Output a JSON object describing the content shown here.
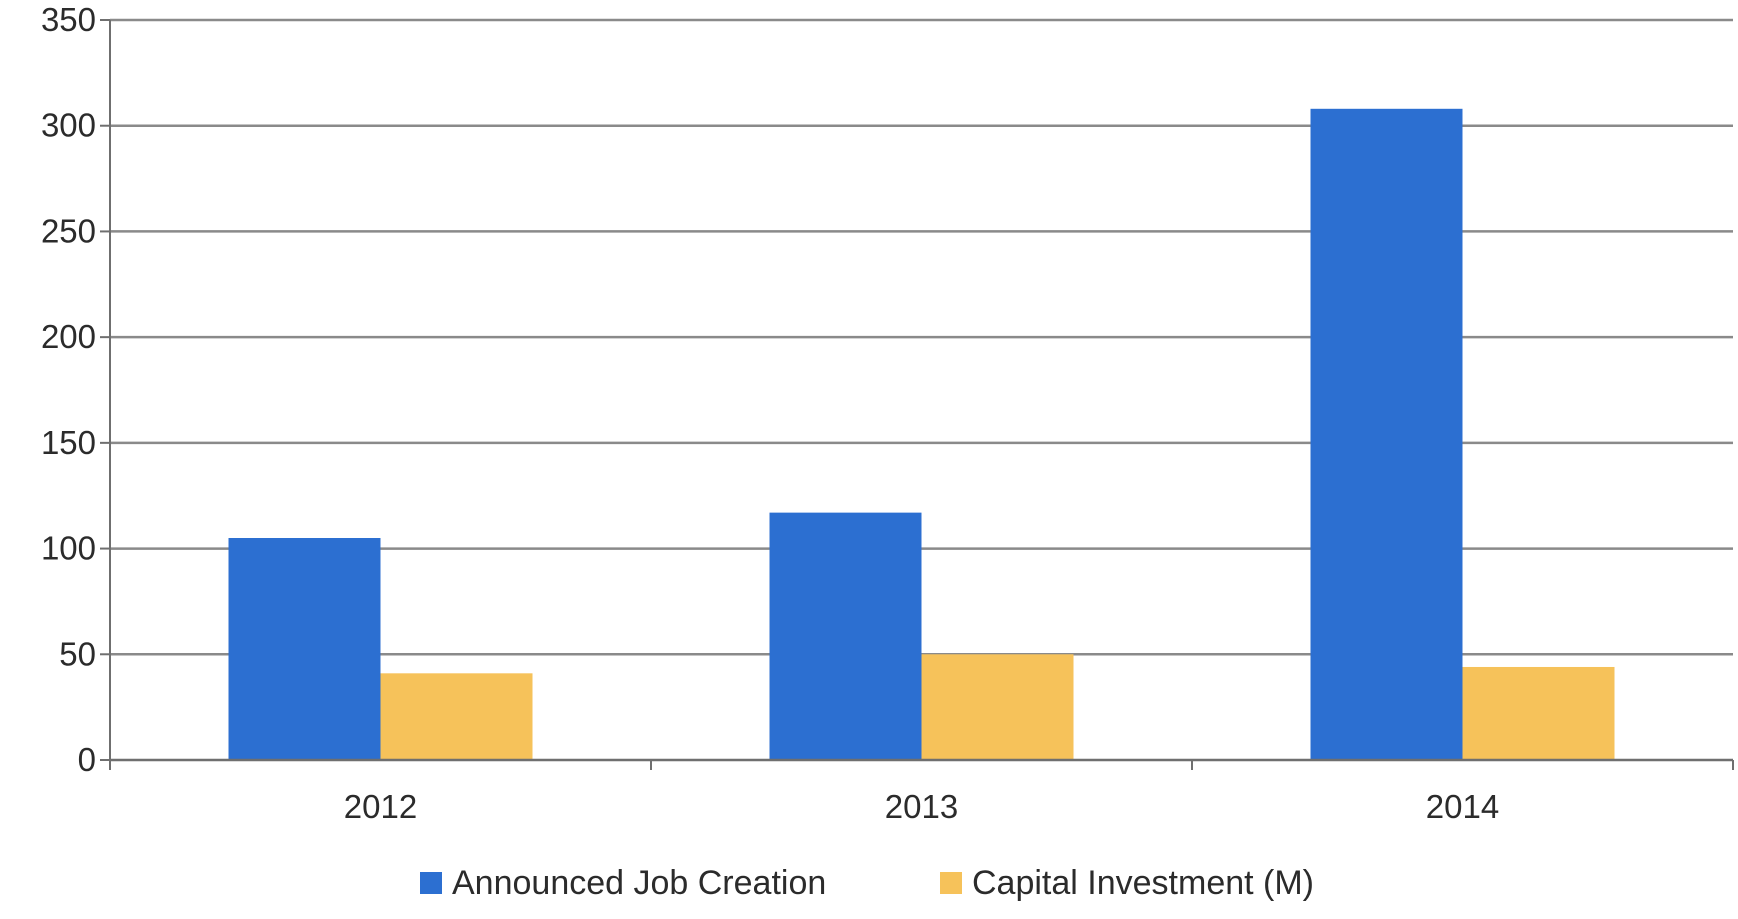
{
  "chart_data": {
    "type": "bar",
    "categories": [
      "2012",
      "2013",
      "2014"
    ],
    "series": [
      {
        "name": "Announced Job Creation",
        "values": [
          105,
          117,
          308
        ],
        "color": "#2c6fd1"
      },
      {
        "name": "Capital Investment (M)",
        "values": [
          41,
          50,
          44
        ],
        "color": "#f6c25a"
      }
    ],
    "ylim": [
      0,
      350
    ],
    "yticks": [
      0,
      50,
      100,
      150,
      200,
      250,
      300,
      350
    ],
    "grid": true,
    "legend": "bottom"
  }
}
